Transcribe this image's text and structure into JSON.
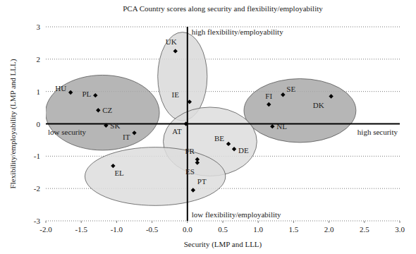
{
  "chart_data": {
    "type": "scatter",
    "title": "PCA Country scores along security and flexibility/employability",
    "x_label": "Security (LMP and LLL)",
    "y_label": "Flexibility/employability (LMP and LLL)",
    "labels": [
      "UK",
      "IE",
      "HU",
      "PL",
      "CZ",
      "SK",
      "IT",
      "AT",
      "BE",
      "DE",
      "FR",
      "ES",
      "PT",
      "EL",
      "SE",
      "FI",
      "DK",
      "NL"
    ],
    "x": [
      -0.17,
      0.03,
      -1.65,
      -1.3,
      -1.26,
      -1.15,
      -0.75,
      -0.02,
      0.58,
      0.66,
      0.14,
      0.14,
      0.08,
      -1.05,
      1.35,
      1.15,
      2.03,
      1.2
    ],
    "values": [
      2.25,
      0.68,
      0.97,
      0.88,
      0.42,
      -0.05,
      -0.28,
      0.0,
      -0.62,
      -0.78,
      -1.1,
      -1.2,
      -2.05,
      -1.3,
      0.9,
      0.6,
      0.85,
      -0.08
    ],
    "groups": [
      {
        "members": [
          "HU",
          "PL",
          "CZ",
          "SK",
          "IT"
        ],
        "color": "#a9a9a9"
      },
      {
        "members": [
          "UK",
          "IE"
        ],
        "color": "#d9d9d9"
      },
      {
        "members": [
          "SE",
          "FI",
          "DK",
          "NL"
        ],
        "color": "#a9a9a9"
      },
      {
        "members": [
          "AT",
          "BE",
          "DE",
          "FR"
        ],
        "color": "#dddddd"
      },
      {
        "members": [
          "EL",
          "ES",
          "PT"
        ],
        "color": "#dddddd"
      }
    ],
    "annotations": [
      "high flexibility/employability",
      "low flexibility/employability",
      "low security",
      "high security"
    ],
    "xlim": [
      -2,
      3
    ],
    "xticks": [
      {
        "value": -2,
        "label": "-2.0"
      },
      {
        "value": -1.5,
        "label": "-1.5"
      },
      {
        "value": -1,
        "label": "-1.0"
      },
      {
        "value": -0.5,
        "label": "-0.5"
      },
      {
        "value": 0,
        "label": "0.0"
      },
      {
        "value": 0.5,
        "label": "0.5"
      },
      {
        "value": 1,
        "label": "1.0"
      },
      {
        "value": 1.5,
        "label": "1.5"
      },
      {
        "value": 2,
        "label": "2.0"
      },
      {
        "value": 2.5,
        "label": "2.5"
      },
      {
        "value": 3,
        "label": "3.0"
      }
    ],
    "ylim": [
      -3,
      3
    ],
    "yticks": [
      -3,
      -2,
      -1,
      0,
      1,
      2,
      3
    ],
    "grid": true,
    "marker": "diamond",
    "color": "#000000"
  }
}
